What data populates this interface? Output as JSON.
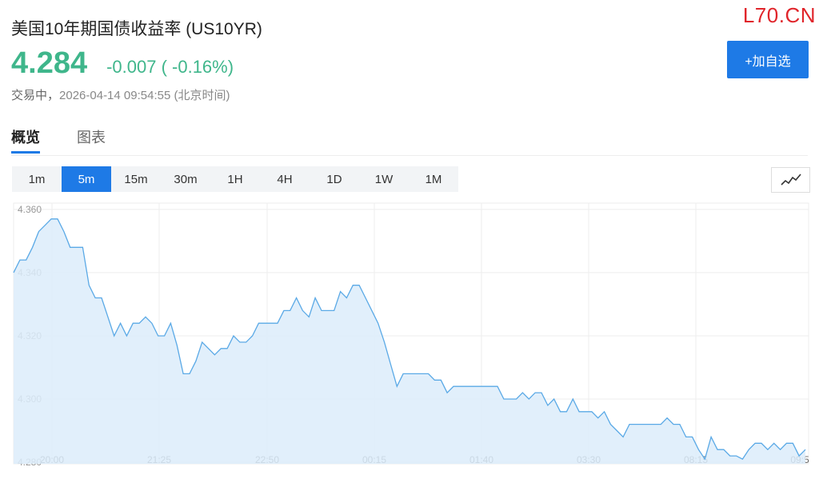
{
  "header": {
    "title": "美国10年期国债收益率 (US10YR)",
    "watermark": "L70.CN",
    "price": "4.284",
    "change": "-0.007 ( -0.16%)",
    "status_label": "交易中，",
    "status_time": "2026-04-14 09:54:55 (北京时间)",
    "add_button": "+加自选"
  },
  "tabs": [
    {
      "label": "概览",
      "active": true
    },
    {
      "label": "图表",
      "active": false
    }
  ],
  "periods": [
    {
      "label": "1m",
      "active": false
    },
    {
      "label": "5m",
      "active": true
    },
    {
      "label": "15m",
      "active": false
    },
    {
      "label": "30m",
      "active": false
    },
    {
      "label": "1H",
      "active": false
    },
    {
      "label": "4H",
      "active": false
    },
    {
      "label": "1D",
      "active": false
    },
    {
      "label": "1W",
      "active": false
    },
    {
      "label": "1M",
      "active": false
    }
  ],
  "colors": {
    "accent": "#1e7ae6",
    "down": "#3fb68b",
    "line": "#5aa9e6",
    "area": "#dcecfa",
    "watermark": "#e0252b"
  },
  "chart_data": {
    "type": "area",
    "x_tick_labels": [
      "20:00",
      "21:25",
      "22:50",
      "00:15",
      "01:40",
      "03:30",
      "08:15",
      "09:5"
    ],
    "y_tick_labels": [
      "4.360",
      "4.340",
      "4.320",
      "4.300",
      "4.280"
    ],
    "ylim": [
      4.2795,
      4.362
    ],
    "grid": true,
    "values": [
      4.34,
      4.344,
      4.344,
      4.348,
      4.353,
      4.355,
      4.357,
      4.357,
      4.353,
      4.348,
      4.348,
      4.348,
      4.336,
      4.332,
      4.332,
      4.326,
      4.32,
      4.324,
      4.32,
      4.324,
      4.324,
      4.326,
      4.324,
      4.32,
      4.32,
      4.324,
      4.317,
      4.308,
      4.308,
      4.312,
      4.318,
      4.316,
      4.314,
      4.316,
      4.316,
      4.32,
      4.318,
      4.318,
      4.32,
      4.324,
      4.324,
      4.324,
      4.324,
      4.328,
      4.328,
      4.332,
      4.328,
      4.326,
      4.332,
      4.328,
      4.328,
      4.328,
      4.334,
      4.332,
      4.336,
      4.336,
      4.332,
      4.328,
      4.324,
      4.318,
      4.311,
      4.304,
      4.308,
      4.308,
      4.308,
      4.308,
      4.308,
      4.306,
      4.306,
      4.302,
      4.304,
      4.304,
      4.304,
      4.304,
      4.304,
      4.304,
      4.304,
      4.304,
      4.3,
      4.3,
      4.3,
      4.302,
      4.3,
      4.302,
      4.302,
      4.298,
      4.3,
      4.296,
      4.296,
      4.3,
      4.296,
      4.296,
      4.296,
      4.294,
      4.296,
      4.292,
      4.29,
      4.288,
      4.292,
      4.292,
      4.292,
      4.292,
      4.292,
      4.292,
      4.294,
      4.292,
      4.292,
      4.288,
      4.288,
      4.284,
      4.281,
      4.288,
      4.284,
      4.284,
      4.282,
      4.282,
      4.281,
      4.284,
      4.286,
      4.286,
      4.284,
      4.286,
      4.284,
      4.286,
      4.286,
      4.282,
      4.284
    ]
  }
}
